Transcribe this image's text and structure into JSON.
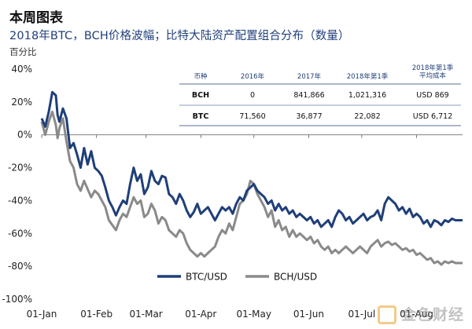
{
  "header": {
    "title": "本周图表",
    "subtitle": "2018年BTC，BCH价格波幅；比特大陆资产配置组合分布（数量）",
    "unit": "百分比"
  },
  "watermark": {
    "text": "金色财经"
  },
  "colors": {
    "btc": "#1f3f79",
    "bch": "#8a8a8a",
    "table_rule": "#1f3f79"
  },
  "table": {
    "headers": [
      "币种",
      "2016年",
      "2017年",
      "2018年第1季",
      "2018年第1季\n平均成本"
    ],
    "rows": [
      [
        "BCH",
        "0",
        "841,866",
        "1,021,316",
        "USD 869"
      ],
      [
        "BTC",
        "71,560",
        "36,877",
        "22,082",
        "USD 6,712"
      ]
    ]
  },
  "chart_data": {
    "type": "line",
    "x_ticks": [
      "01-Jan",
      "01-Feb",
      "01-Mar",
      "01-Apr",
      "01-May",
      "01-Jun",
      "01-Jul",
      "01-Aug"
    ],
    "y_ticks": [
      "40%",
      "20%",
      "0%",
      "-20%",
      "-40%",
      "-60%",
      "-80%",
      "-100%"
    ],
    "ylim": [
      -100,
      40
    ],
    "xlim": [
      0,
      238
    ],
    "legend": [
      "BTC/USD",
      "BCH/USD"
    ],
    "series": [
      {
        "name": "BTC/USD",
        "x": [
          0,
          2,
          4,
          6,
          8,
          9,
          10,
          12,
          14,
          16,
          18,
          20,
          22,
          24,
          26,
          28,
          30,
          32,
          34,
          36,
          38,
          40,
          42,
          44,
          46,
          48,
          50,
          52,
          54,
          56,
          58,
          60,
          62,
          64,
          66,
          68,
          70,
          72,
          74,
          76,
          78,
          80,
          82,
          84,
          86,
          88,
          90,
          92,
          94,
          96,
          98,
          100,
          102,
          104,
          106,
          108,
          110,
          112,
          114,
          116,
          118,
          120,
          122,
          124,
          126,
          128,
          130,
          132,
          134,
          136,
          138,
          140,
          142,
          144,
          146,
          148,
          150,
          152,
          154,
          156,
          158,
          160,
          162,
          164,
          166,
          168,
          170,
          172,
          174,
          176,
          178,
          180,
          182,
          184,
          186,
          188,
          190,
          192,
          194,
          196,
          198,
          200,
          202,
          204,
          206,
          208,
          210,
          212,
          214,
          216,
          218,
          220,
          222,
          224,
          226,
          228,
          230,
          232,
          234,
          236,
          238
        ],
        "y": [
          10,
          5,
          14,
          26,
          24,
          12,
          8,
          16,
          10,
          -8,
          -5,
          -12,
          -20,
          -8,
          -18,
          -10,
          -20,
          -22,
          -25,
          -32,
          -40,
          -44,
          -49,
          -44,
          -40,
          -42,
          -30,
          -20,
          -28,
          -24,
          -36,
          -32,
          -22,
          -28,
          -30,
          -25,
          -26,
          -36,
          -38,
          -42,
          -36,
          -40,
          -46,
          -50,
          -47,
          -42,
          -48,
          -46,
          -44,
          -48,
          -52,
          -48,
          -44,
          -46,
          -44,
          -48,
          -42,
          -38,
          -40,
          -34,
          -32,
          -30,
          -34,
          -36,
          -38,
          -42,
          -40,
          -46,
          -42,
          -46,
          -44,
          -48,
          -46,
          -50,
          -48,
          -50,
          -52,
          -50,
          -54,
          -52,
          -56,
          -54,
          -52,
          -56,
          -50,
          -46,
          -48,
          -52,
          -50,
          -54,
          -52,
          -50,
          -48,
          -52,
          -50,
          -49,
          -46,
          -52,
          -42,
          -38,
          -40,
          -42,
          -46,
          -44,
          -48,
          -45,
          -50,
          -48,
          -50,
          -54,
          -52,
          -56,
          -52,
          -53,
          -55,
          -52,
          -53,
          -51,
          -52,
          -52,
          -52
        ]
      },
      {
        "name": "BCH/USD",
        "x": [
          0,
          2,
          4,
          6,
          8,
          9,
          10,
          12,
          14,
          16,
          18,
          20,
          22,
          24,
          26,
          28,
          30,
          32,
          34,
          36,
          38,
          40,
          42,
          44,
          46,
          48,
          50,
          52,
          54,
          56,
          58,
          60,
          62,
          64,
          66,
          68,
          70,
          72,
          74,
          76,
          78,
          80,
          82,
          84,
          86,
          88,
          90,
          92,
          94,
          96,
          98,
          100,
          102,
          104,
          106,
          108,
          110,
          112,
          114,
          116,
          118,
          120,
          122,
          124,
          126,
          128,
          130,
          132,
          134,
          136,
          138,
          140,
          142,
          144,
          146,
          148,
          150,
          152,
          154,
          156,
          158,
          160,
          162,
          164,
          166,
          168,
          170,
          172,
          174,
          176,
          178,
          180,
          182,
          184,
          186,
          188,
          190,
          192,
          194,
          196,
          198,
          200,
          202,
          204,
          206,
          208,
          210,
          212,
          214,
          216,
          218,
          220,
          222,
          224,
          226,
          228,
          230,
          232,
          234,
          236,
          238
        ],
        "y": [
          8,
          0,
          8,
          14,
          6,
          -2,
          4,
          10,
          -4,
          -16,
          -20,
          -30,
          -34,
          -28,
          -33,
          -38,
          -34,
          -36,
          -40,
          -44,
          -52,
          -55,
          -58,
          -52,
          -48,
          -50,
          -44,
          -38,
          -42,
          -40,
          -50,
          -48,
          -42,
          -46,
          -54,
          -50,
          -52,
          -58,
          -60,
          -62,
          -58,
          -60,
          -66,
          -70,
          -72,
          -74,
          -72,
          -74,
          -72,
          -70,
          -68,
          -62,
          -58,
          -60,
          -54,
          -58,
          -50,
          -42,
          -40,
          -36,
          -28,
          -30,
          -36,
          -40,
          -44,
          -50,
          -46,
          -56,
          -52,
          -58,
          -56,
          -62,
          -58,
          -62,
          -60,
          -62,
          -64,
          -62,
          -66,
          -64,
          -68,
          -70,
          -68,
          -72,
          -70,
          -72,
          -70,
          -68,
          -70,
          -72,
          -70,
          -68,
          -70,
          -72,
          -68,
          -66,
          -64,
          -68,
          -66,
          -65,
          -67,
          -66,
          -68,
          -70,
          -69,
          -71,
          -70,
          -73,
          -72,
          -74,
          -76,
          -75,
          -78,
          -77,
          -79,
          -77,
          -78,
          -77,
          -78,
          -78,
          -78
        ]
      }
    ]
  }
}
